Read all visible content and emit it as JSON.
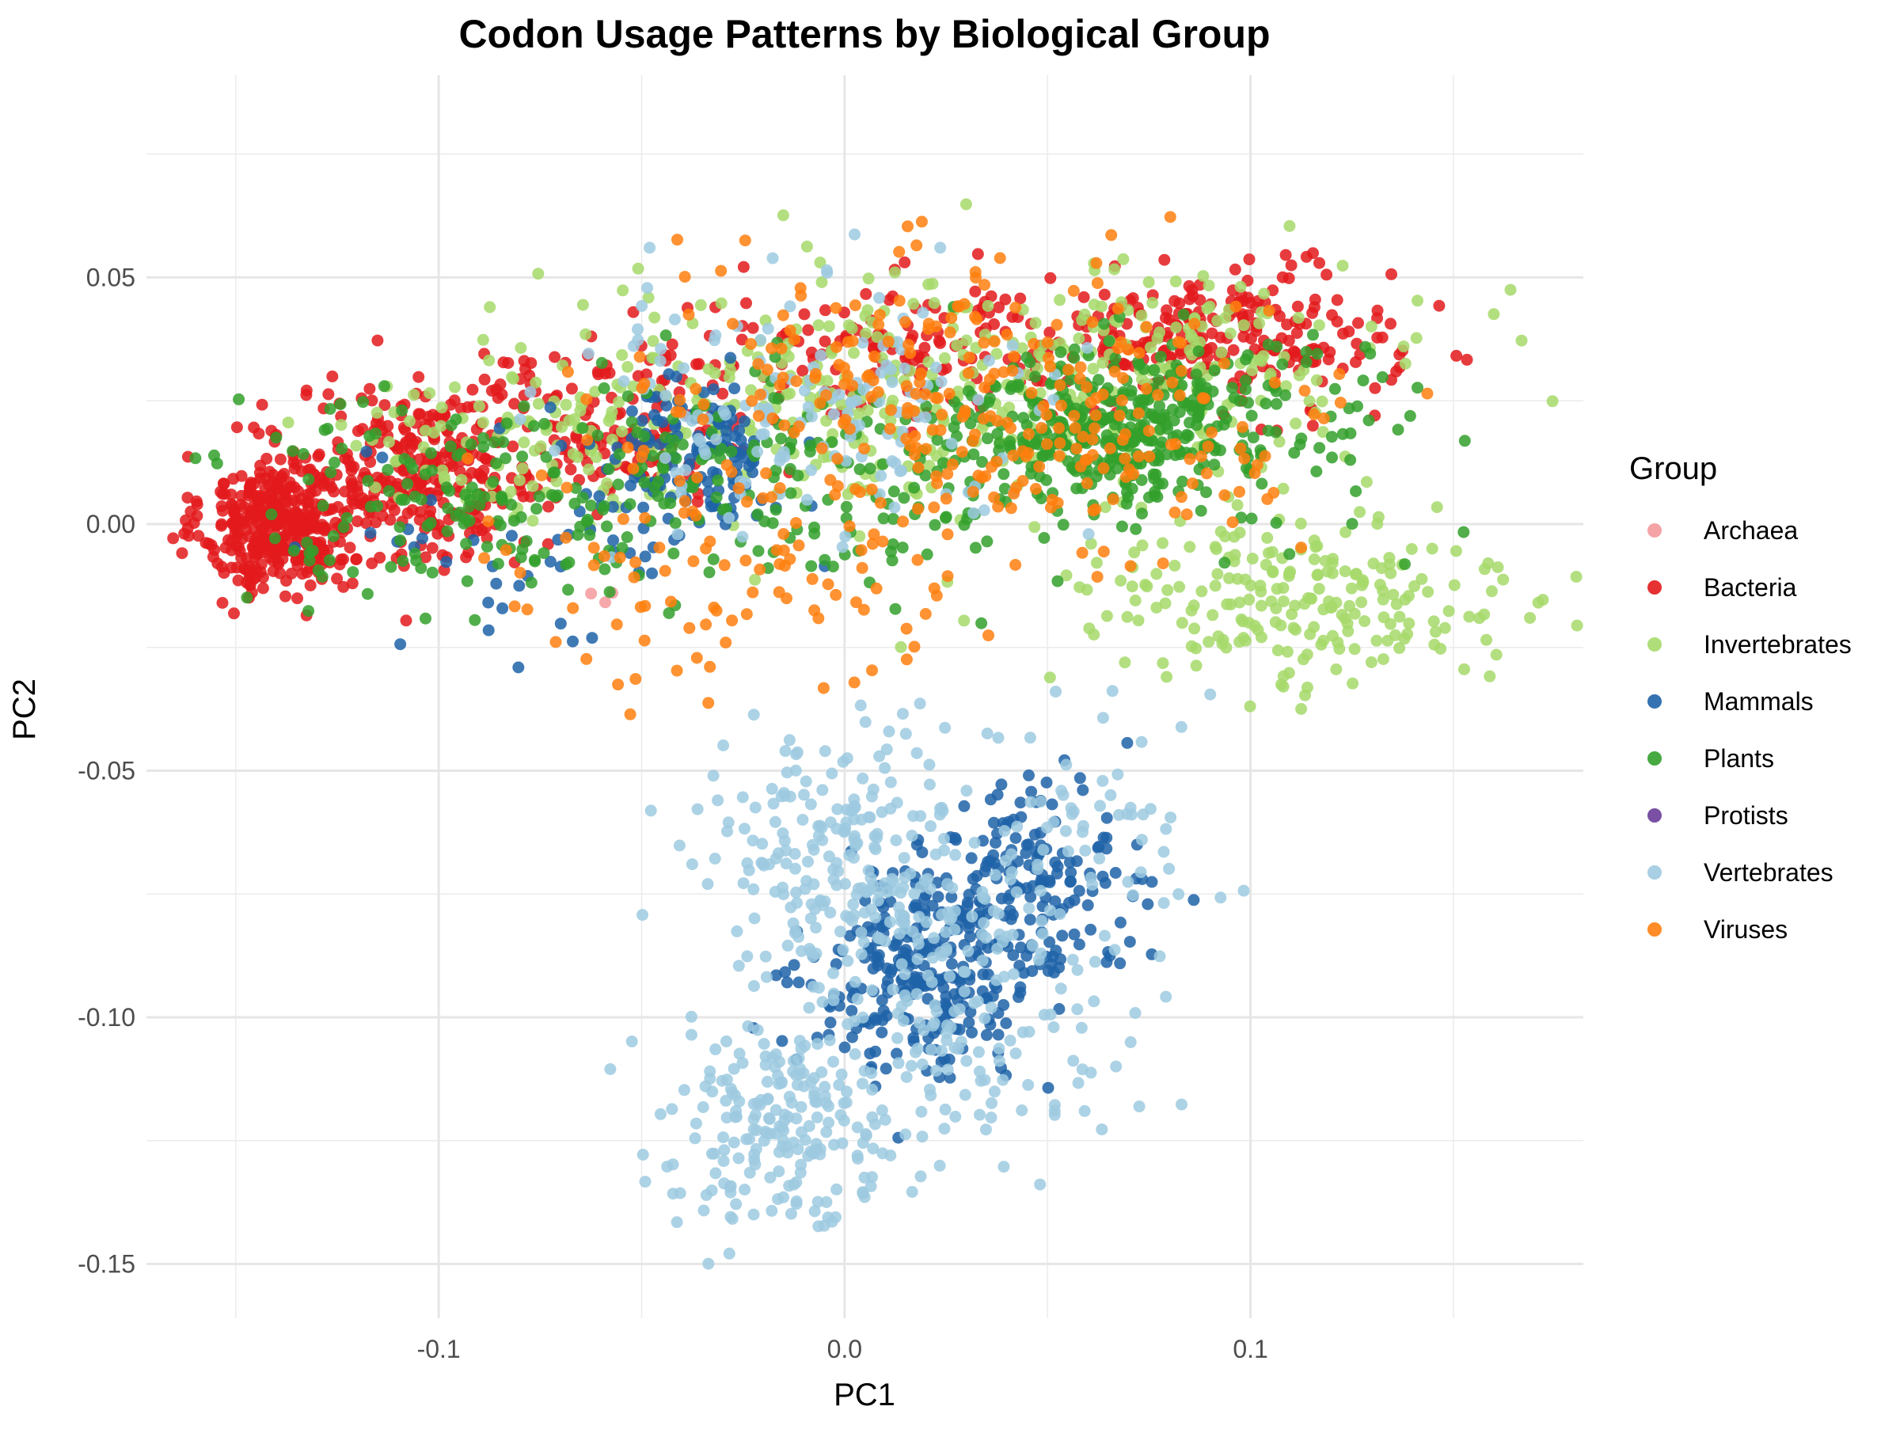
{
  "chart_data": {
    "type": "scatter",
    "title": "Codon Usage Patterns by Biological Group",
    "xlabel": "PC1",
    "ylabel": "PC2",
    "xlim": [
      -0.172,
      0.182
    ],
    "ylim": [
      -0.161,
      0.091
    ],
    "x_ticks": [
      {
        "value": -0.1,
        "label": "-0.1"
      },
      {
        "value": 0.0,
        "label": "0.0"
      },
      {
        "value": 0.1,
        "label": "0.1"
      }
    ],
    "x_minor_ticks": [
      -0.15,
      -0.05,
      0.05,
      0.15
    ],
    "y_ticks": [
      {
        "value": 0.05,
        "label": "0.05"
      },
      {
        "value": 0.0,
        "label": "0.00"
      },
      {
        "value": -0.05,
        "label": "-0.05"
      },
      {
        "value": -0.1,
        "label": "-0.10"
      },
      {
        "value": -0.15,
        "label": "-0.15"
      }
    ],
    "y_minor_ticks": [
      0.075,
      0.025,
      -0.025,
      -0.075,
      -0.125
    ],
    "grid": true,
    "legend": {
      "title": "Group",
      "position": "right"
    },
    "series": [
      {
        "name": "Archaea",
        "color": "#f4999b",
        "marker": "circle",
        "clusters": [
          {
            "cx": -0.06,
            "cy": -0.012,
            "sx": 0.003,
            "sy": 0.002,
            "n": 3
          }
        ]
      },
      {
        "name": "Bacteria",
        "color": "#e31a1c",
        "marker": "circle",
        "clusters": [
          {
            "cx": -0.14,
            "cy": 0.0,
            "sx": 0.009,
            "sy": 0.007,
            "n": 380
          },
          {
            "cx": -0.105,
            "cy": 0.01,
            "sx": 0.015,
            "sy": 0.009,
            "n": 260
          },
          {
            "cx": -0.06,
            "cy": 0.02,
            "sx": 0.02,
            "sy": 0.008,
            "n": 160
          },
          {
            "cx": 0.02,
            "cy": 0.035,
            "sx": 0.035,
            "sy": 0.007,
            "n": 170
          },
          {
            "cx": 0.095,
            "cy": 0.038,
            "sx": 0.02,
            "sy": 0.007,
            "n": 220
          }
        ]
      },
      {
        "name": "Invertebrates",
        "color": "#a6d96a",
        "marker": "circle",
        "clusters": [
          {
            "cx": 0.0,
            "cy": 0.025,
            "sx": 0.045,
            "sy": 0.012,
            "n": 260
          },
          {
            "cx": 0.08,
            "cy": 0.033,
            "sx": 0.035,
            "sy": 0.01,
            "n": 150
          },
          {
            "cx": 0.11,
            "cy": -0.015,
            "sx": 0.03,
            "sy": 0.01,
            "n": 230
          },
          {
            "cx": -0.08,
            "cy": 0.015,
            "sx": 0.025,
            "sy": 0.008,
            "n": 80
          }
        ]
      },
      {
        "name": "Mammals",
        "color": "#1f63a8",
        "marker": "circle",
        "clusters": [
          {
            "cx": -0.04,
            "cy": 0.013,
            "sx": 0.012,
            "sy": 0.008,
            "n": 140
          },
          {
            "cx": 0.02,
            "cy": -0.092,
            "sx": 0.014,
            "sy": 0.01,
            "n": 260
          },
          {
            "cx": 0.045,
            "cy": -0.072,
            "sx": 0.013,
            "sy": 0.01,
            "n": 170
          },
          {
            "cx": -0.07,
            "cy": -0.005,
            "sx": 0.025,
            "sy": 0.01,
            "n": 40
          }
        ]
      },
      {
        "name": "Plants",
        "color": "#33a02c",
        "marker": "circle",
        "clusters": [
          {
            "cx": 0.065,
            "cy": 0.02,
            "sx": 0.018,
            "sy": 0.008,
            "n": 340
          },
          {
            "cx": -0.03,
            "cy": 0.008,
            "sx": 0.045,
            "sy": 0.012,
            "n": 260
          },
          {
            "cx": -0.11,
            "cy": 0.005,
            "sx": 0.02,
            "sy": 0.01,
            "n": 80
          },
          {
            "cx": 0.11,
            "cy": 0.02,
            "sx": 0.02,
            "sy": 0.01,
            "n": 70
          }
        ]
      },
      {
        "name": "Protists",
        "color": "#6a3d9a",
        "marker": "circle",
        "clusters": []
      },
      {
        "name": "Vertebrates",
        "color": "#9ecae1",
        "marker": "circle",
        "clusters": [
          {
            "cx": 0.0,
            "cy": -0.068,
            "sx": 0.017,
            "sy": 0.012,
            "n": 220
          },
          {
            "cx": -0.015,
            "cy": -0.12,
            "sx": 0.015,
            "sy": 0.011,
            "n": 220
          },
          {
            "cx": 0.035,
            "cy": -0.095,
            "sx": 0.02,
            "sy": 0.015,
            "n": 160
          },
          {
            "cx": -0.01,
            "cy": 0.023,
            "sx": 0.03,
            "sy": 0.012,
            "n": 150
          },
          {
            "cx": 0.065,
            "cy": -0.06,
            "sx": 0.02,
            "sy": 0.012,
            "n": 60
          }
        ]
      },
      {
        "name": "Viruses",
        "color": "#ff7f0e",
        "marker": "circle",
        "clusters": [
          {
            "cx": 0.02,
            "cy": 0.025,
            "sx": 0.04,
            "sy": 0.014,
            "n": 220
          },
          {
            "cx": -0.03,
            "cy": -0.01,
            "sx": 0.03,
            "sy": 0.012,
            "n": 90
          },
          {
            "cx": 0.06,
            "cy": 0.018,
            "sx": 0.025,
            "sy": 0.012,
            "n": 80
          }
        ]
      }
    ]
  }
}
